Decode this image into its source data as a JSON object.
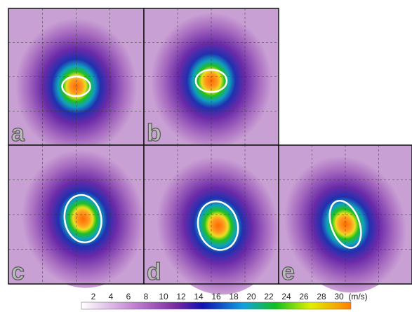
{
  "panels": [
    {
      "label": "a"
    },
    {
      "label": "b"
    },
    {
      "label": "c"
    },
    {
      "label": "d"
    },
    {
      "label": "e"
    }
  ],
  "colorbar": {
    "ticks": [
      2,
      4,
      6,
      8,
      10,
      12,
      14,
      16,
      18,
      20,
      22,
      24,
      26,
      28,
      30
    ],
    "unit": "(m/s)"
  }
}
